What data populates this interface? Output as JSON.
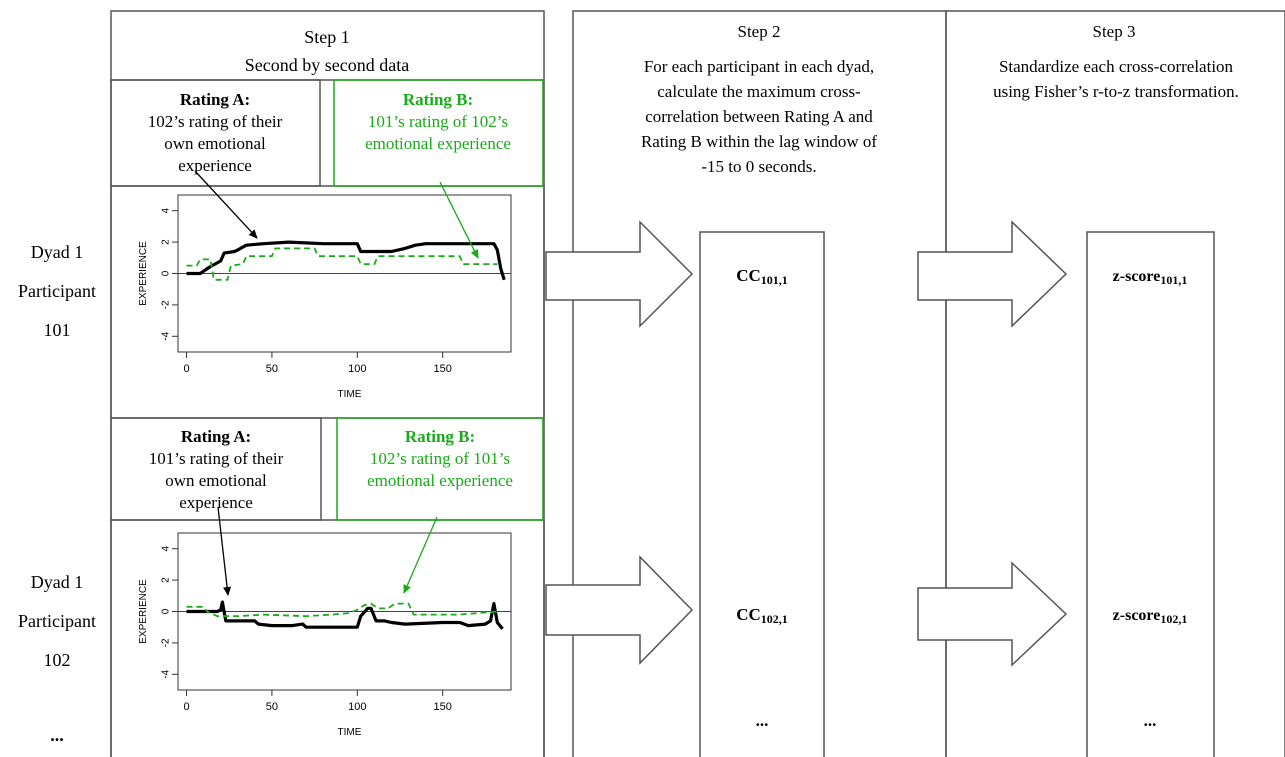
{
  "colors": {
    "line": "#555555",
    "green": "#1aaa1a",
    "black": "#000000",
    "axis": "#333333"
  },
  "step1": {
    "title": "Step 1",
    "subtitle": "Second by second data"
  },
  "step2": {
    "title": "Step 2",
    "desc": [
      "For each participant in each dyad,",
      "calculate the maximum cross-",
      "correlation between Rating A and",
      "Rating B within the lag window of",
      "-15 to 0 seconds."
    ],
    "cc1": {
      "base": "CC",
      "sub": "101,1"
    },
    "cc2": {
      "base": "CC",
      "sub": "102,1"
    },
    "ellipsis": "..."
  },
  "step3": {
    "title": "Step 3",
    "desc": [
      "Standardize each cross-correlation",
      "using Fisher’s r-to-z transformation."
    ],
    "z1": {
      "base": "z-score",
      "sub": "101,1"
    },
    "z2": {
      "base": "z-score",
      "sub": "102,1"
    },
    "ellipsis": "..."
  },
  "rows": [
    {
      "label": [
        "Dyad 1",
        "Participant",
        "101"
      ],
      "ratingA": {
        "title": "Rating A:",
        "lines": [
          "102’s rating of their",
          "own emotional",
          "experience"
        ]
      },
      "ratingB": {
        "title": "Rating B:",
        "lines": [
          "101’s rating of 102’s",
          "emotional experience"
        ]
      }
    },
    {
      "label": [
        "Dyad 1",
        "Participant",
        "102"
      ],
      "ratingA": {
        "title": "Rating A:",
        "lines": [
          "101’s rating of their",
          "own emotional",
          "experience"
        ]
      },
      "ratingB": {
        "title": "Rating B:",
        "lines": [
          "102’s rating of 101’s",
          "emotional experience"
        ]
      }
    }
  ],
  "bottom_ellipsis": "...",
  "chart_data": [
    {
      "type": "line",
      "xlabel": "TIME",
      "ylabel": "EXPERIENCE",
      "xlim": [
        -5,
        190
      ],
      "ylim": [
        -5,
        5
      ],
      "xticks": [
        0,
        50,
        100,
        150
      ],
      "yticks": [
        -4,
        -2,
        0,
        2,
        4
      ],
      "hline": 0,
      "series": [
        {
          "style": "solid-black",
          "points": [
            [
              0,
              0
            ],
            [
              8,
              0
            ],
            [
              12,
              0.3
            ],
            [
              15,
              0.5
            ],
            [
              20,
              0.8
            ],
            [
              22,
              1.3
            ],
            [
              28,
              1.4
            ],
            [
              30,
              1.5
            ],
            [
              35,
              1.8
            ],
            [
              45,
              1.9
            ],
            [
              60,
              2.0
            ],
            [
              80,
              1.9
            ],
            [
              100,
              1.9
            ],
            [
              102,
              1.4
            ],
            [
              120,
              1.4
            ],
            [
              128,
              1.6
            ],
            [
              134,
              1.8
            ],
            [
              140,
              1.9
            ],
            [
              180,
              1.9
            ],
            [
              182,
              1.5
            ],
            [
              184,
              0.3
            ],
            [
              186,
              -0.4
            ]
          ]
        },
        {
          "style": "dashed-green",
          "points": [
            [
              0,
              0.5
            ],
            [
              6,
              0.5
            ],
            [
              8,
              0.9
            ],
            [
              14,
              0.9
            ],
            [
              16,
              -0.4
            ],
            [
              24,
              -0.4
            ],
            [
              26,
              0.5
            ],
            [
              33,
              0.6
            ],
            [
              35,
              1.1
            ],
            [
              50,
              1.1
            ],
            [
              52,
              1.6
            ],
            [
              75,
              1.6
            ],
            [
              77,
              1.1
            ],
            [
              100,
              1.1
            ],
            [
              102,
              0.6
            ],
            [
              110,
              0.6
            ],
            [
              112,
              1.1
            ],
            [
              160,
              1.1
            ],
            [
              162,
              0.6
            ],
            [
              182,
              0.6
            ]
          ]
        }
      ]
    },
    {
      "type": "line",
      "xlabel": "TIME",
      "ylabel": "EXPERIENCE",
      "xlim": [
        -5,
        190
      ],
      "ylim": [
        -5,
        5
      ],
      "xticks": [
        0,
        50,
        100,
        150
      ],
      "yticks": [
        -4,
        -2,
        0,
        2,
        4
      ],
      "hline": 0,
      "series": [
        {
          "style": "solid-black",
          "points": [
            [
              0,
              0
            ],
            [
              18,
              0
            ],
            [
              20,
              0.1
            ],
            [
              21,
              0.6
            ],
            [
              23,
              -0.6
            ],
            [
              40,
              -0.6
            ],
            [
              42,
              -0.8
            ],
            [
              50,
              -0.9
            ],
            [
              62,
              -0.9
            ],
            [
              68,
              -0.8
            ],
            [
              70,
              -1.0
            ],
            [
              100,
              -1.0
            ],
            [
              102,
              -0.3
            ],
            [
              106,
              0.2
            ],
            [
              108,
              0.2
            ],
            [
              111,
              -0.6
            ],
            [
              116,
              -0.6
            ],
            [
              120,
              -0.7
            ],
            [
              128,
              -0.8
            ],
            [
              150,
              -0.7
            ],
            [
              160,
              -0.7
            ],
            [
              165,
              -0.9
            ],
            [
              175,
              -0.8
            ],
            [
              178,
              -0.6
            ],
            [
              180,
              0.5
            ],
            [
              182,
              -0.7
            ],
            [
              185,
              -1.1
            ]
          ]
        },
        {
          "style": "dashed-green",
          "points": [
            [
              0,
              0.3
            ],
            [
              10,
              0.3
            ],
            [
              12,
              0.0
            ],
            [
              18,
              -0.3
            ],
            [
              25,
              -0.3
            ],
            [
              30,
              -0.3
            ],
            [
              45,
              -0.2
            ],
            [
              70,
              -0.3
            ],
            [
              85,
              -0.2
            ],
            [
              95,
              -0.1
            ],
            [
              100,
              0.1
            ],
            [
              104,
              0.4
            ],
            [
              108,
              0.5
            ],
            [
              112,
              0.2
            ],
            [
              118,
              0.2
            ],
            [
              122,
              0.5
            ],
            [
              130,
              0.5
            ],
            [
              133,
              -0.2
            ],
            [
              160,
              -0.2
            ],
            [
              182,
              0.0
            ]
          ]
        }
      ]
    }
  ]
}
